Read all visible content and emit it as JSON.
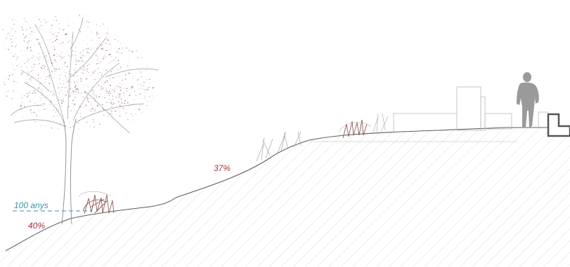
{
  "annotations": {
    "flood_level_label": "100 anys",
    "slope_lower_label": "40%",
    "slope_upper_label": "37%"
  },
  "colors": {
    "flood_level": "#3a93a6",
    "slope_label": "#a5353c",
    "linework": "#6e6e6e",
    "hatch": "#c9c9c9",
    "vegetation": "#8c5a55",
    "tree_foliage": "#9a7470",
    "person": "#8d8d8d"
  },
  "icons": {
    "person": "person-silhouette-icon",
    "tree": "deciduous-tree-icon",
    "shrub": "shrub-icon"
  }
}
